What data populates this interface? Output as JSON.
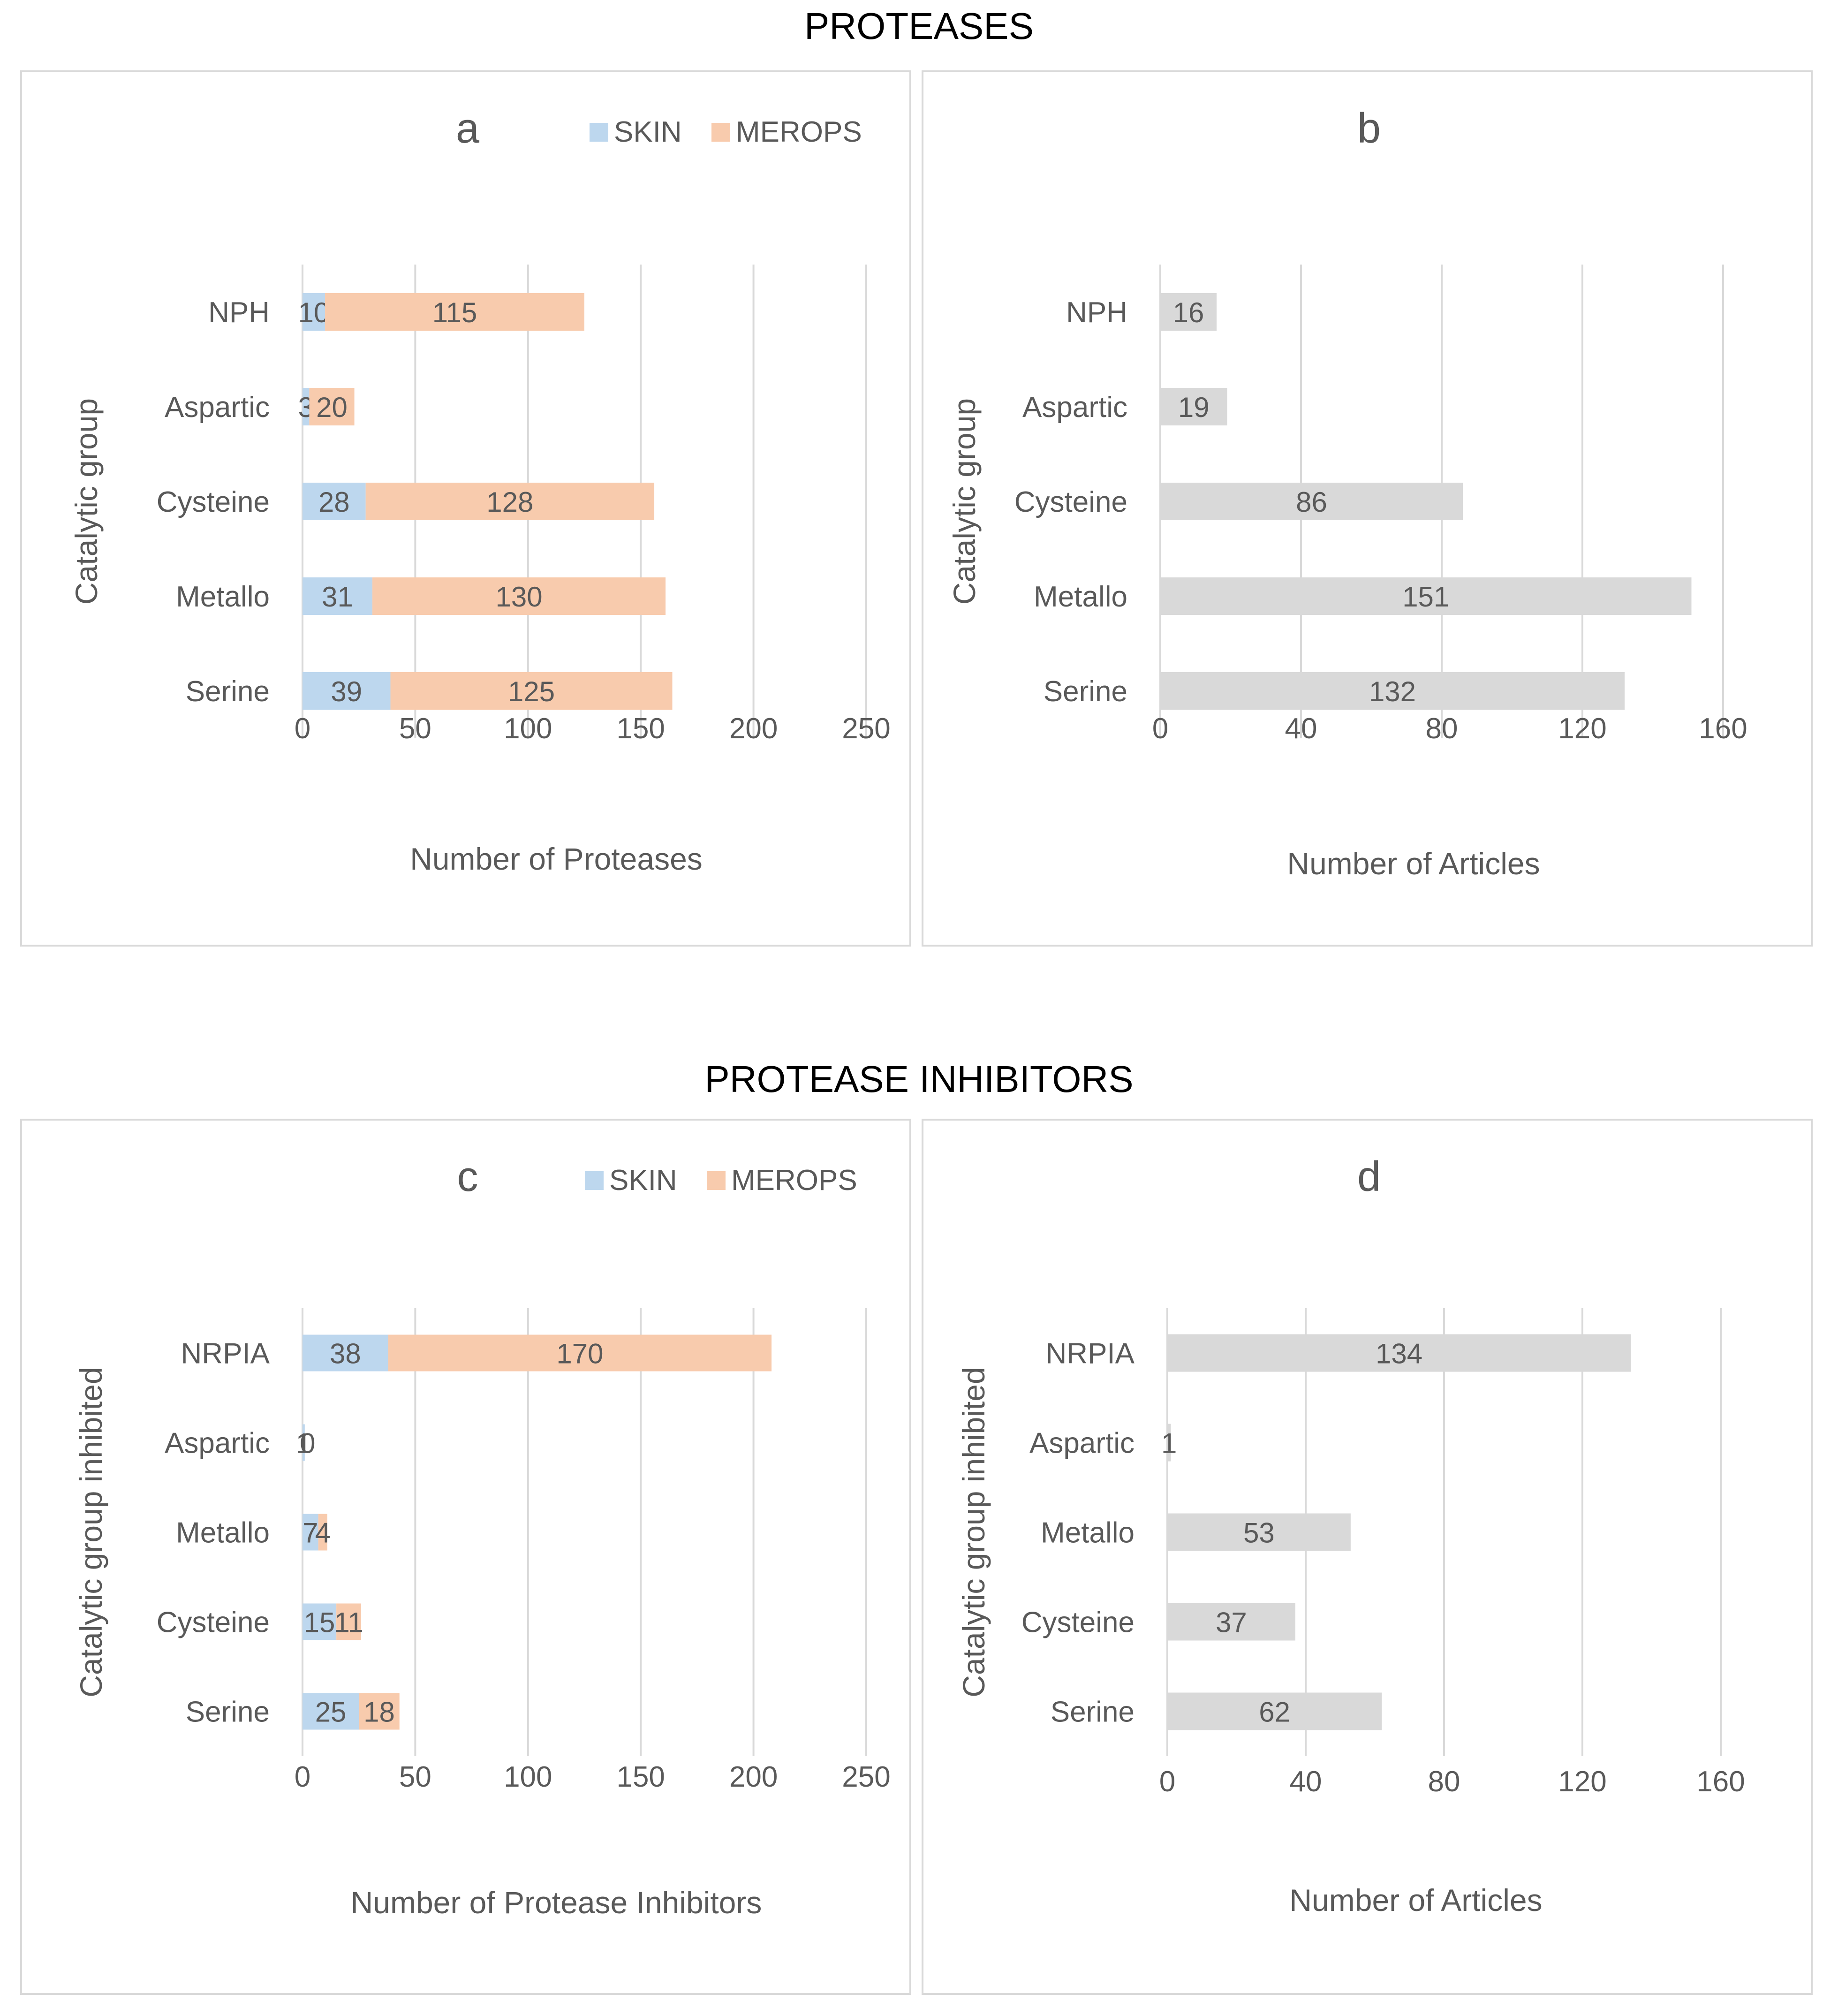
{
  "sections": {
    "proteases_title": "PROTEASES",
    "inhibitors_title": "PROTEASE INHIBITORS"
  },
  "colors": {
    "skin": "#BDD7EE",
    "merops": "#F8CBAD",
    "articles": "#D9D9D9",
    "grid": "#D9D9D9",
    "text": "#595959"
  },
  "chart_data": [
    {
      "id": "a",
      "type": "bar",
      "orientation": "horizontal",
      "stacked": true,
      "title": "a",
      "xlabel": "Number of Proteases",
      "ylabel": "Catalytic group",
      "categories": [
        "NPH",
        "Aspartic",
        "Cysteine",
        "Metallo",
        "Serine"
      ],
      "series": [
        {
          "name": "SKIN",
          "values": [
            10,
            3,
            28,
            31,
            39
          ]
        },
        {
          "name": "MEROPS",
          "values": [
            115,
            20,
            128,
            130,
            125
          ]
        }
      ],
      "xlim": [
        0,
        250
      ],
      "xticks": [
        0,
        50,
        100,
        150,
        200,
        250
      ],
      "legend": "top-right",
      "grid": true
    },
    {
      "id": "b",
      "type": "bar",
      "orientation": "horizontal",
      "title": "b",
      "xlabel": "Number of Articles",
      "ylabel": "Catalytic group",
      "categories": [
        "NPH",
        "Aspartic",
        "Cysteine",
        "Metallo",
        "Serine"
      ],
      "series": [
        {
          "name": "Articles",
          "values": [
            16,
            19,
            86,
            151,
            132
          ]
        }
      ],
      "xlim": [
        0,
        160
      ],
      "xticks": [
        0,
        40,
        80,
        120,
        160
      ],
      "grid": true
    },
    {
      "id": "c",
      "type": "bar",
      "orientation": "horizontal",
      "stacked": true,
      "title": "c",
      "xlabel": "Number of Protease Inhibitors",
      "ylabel": "Catalytic group inhibited",
      "categories": [
        "NRPIA",
        "Aspartic",
        "Metallo",
        "Cysteine",
        "Serine"
      ],
      "series": [
        {
          "name": "SKIN",
          "values": [
            38,
            1,
            7,
            15,
            25
          ]
        },
        {
          "name": "MEROPS",
          "values": [
            170,
            0,
            4,
            11,
            18
          ]
        }
      ],
      "xlim": [
        0,
        250
      ],
      "xticks": [
        0,
        50,
        100,
        150,
        200,
        250
      ],
      "legend": "top-right",
      "grid": true
    },
    {
      "id": "d",
      "type": "bar",
      "orientation": "horizontal",
      "title": "d",
      "xlabel": "Number of Articles",
      "ylabel": "Catalytic group inhibited",
      "categories": [
        "NRPIA",
        "Aspartic",
        "Metallo",
        "Cysteine",
        "Serine"
      ],
      "series": [
        {
          "name": "Articles",
          "values": [
            134,
            1,
            53,
            37,
            62
          ]
        }
      ],
      "xlim": [
        0,
        160
      ],
      "xticks": [
        0,
        40,
        80,
        120,
        160
      ],
      "grid": true
    }
  ]
}
